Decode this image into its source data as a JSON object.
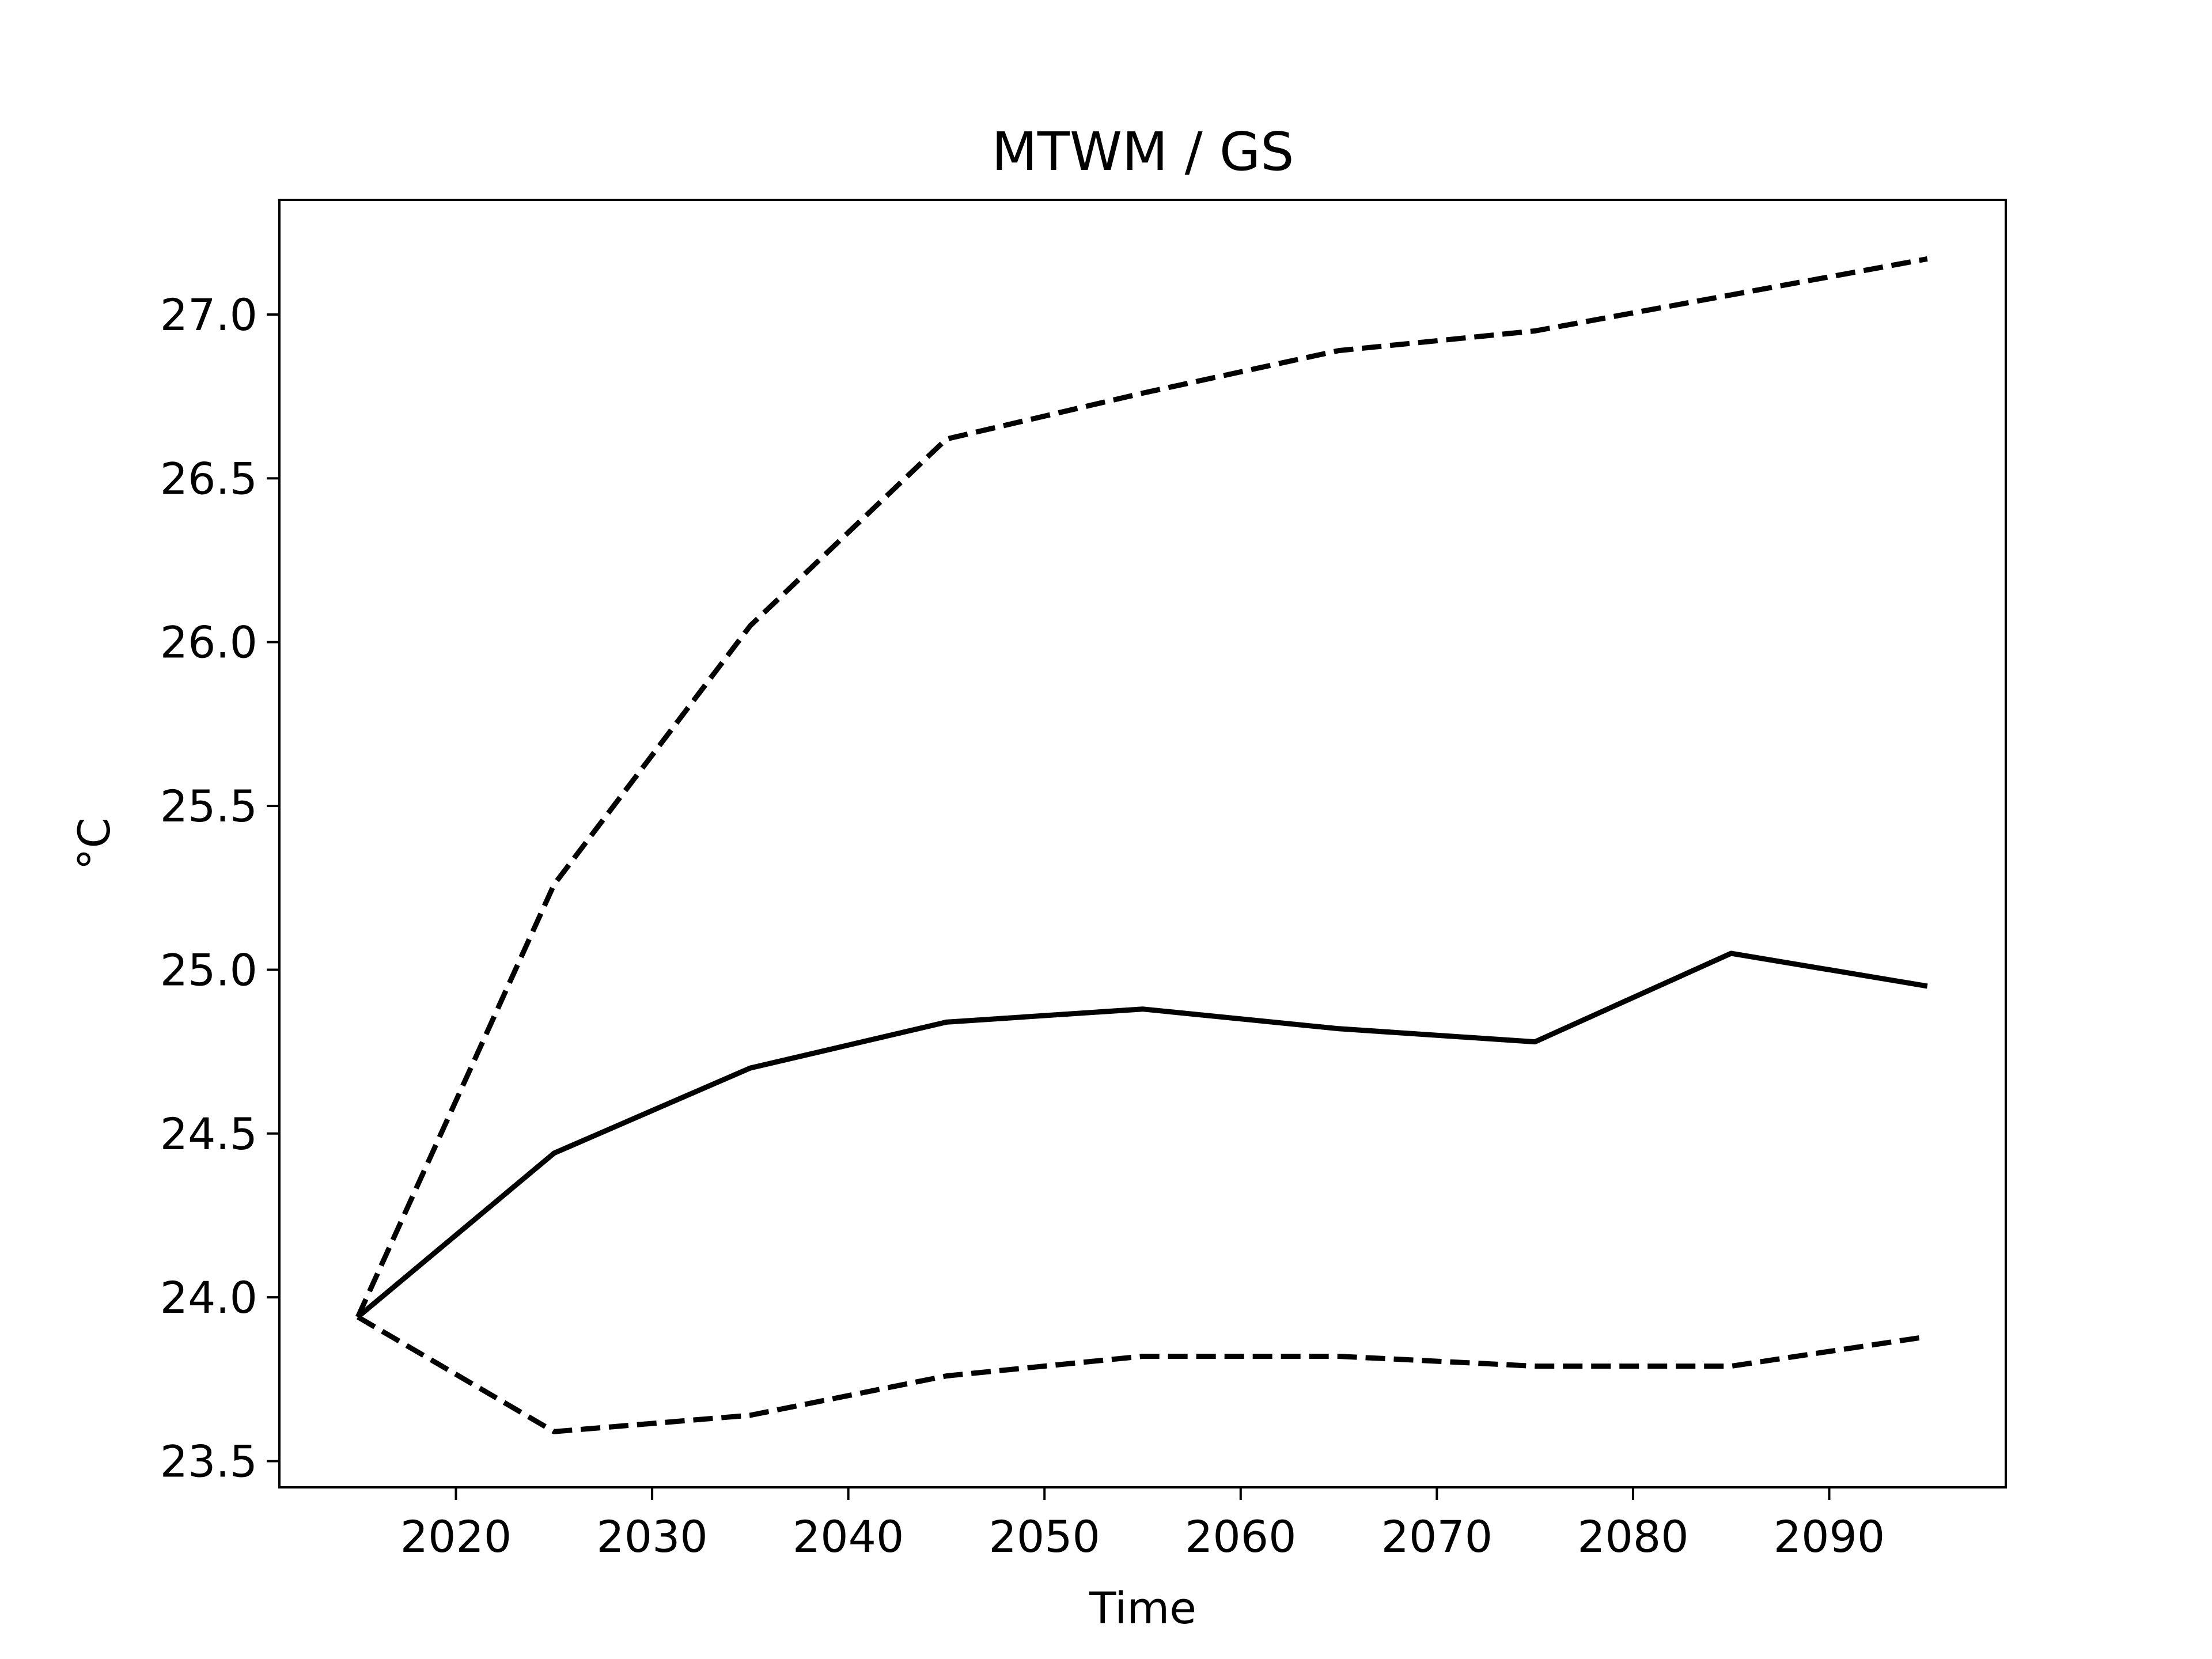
{
  "chart_data": {
    "type": "line",
    "title": "MTWM / GS",
    "xlabel": "Time",
    "ylabel": "°C",
    "x": [
      2015,
      2025,
      2035,
      2045,
      2055,
      2065,
      2075,
      2085,
      2095
    ],
    "xlim": [
      2011,
      2099
    ],
    "ylim": [
      23.42,
      27.35
    ],
    "xticks": [
      2020,
      2030,
      2040,
      2050,
      2060,
      2070,
      2080,
      2090
    ],
    "xtick_labels": [
      "2020",
      "2030",
      "2040",
      "2050",
      "2060",
      "2070",
      "2080",
      "2090"
    ],
    "yticks": [
      23.5,
      24.0,
      24.5,
      25.0,
      25.5,
      26.0,
      26.5,
      27.0
    ],
    "ytick_labels": [
      "23.5",
      "24.0",
      "24.5",
      "25.0",
      "25.5",
      "26.0",
      "26.5",
      "27.0"
    ],
    "grid": false,
    "series": [
      {
        "style": "dashed",
        "color": "#000000",
        "values": [
          23.94,
          25.26,
          26.05,
          26.62,
          26.76,
          26.89,
          26.95,
          27.06,
          27.17
        ]
      },
      {
        "style": "solid",
        "color": "#000000",
        "values": [
          23.94,
          24.44,
          24.7,
          24.84,
          24.88,
          24.82,
          24.78,
          25.05,
          24.95
        ]
      },
      {
        "style": "dashed",
        "color": "#000000",
        "values": [
          23.94,
          23.59,
          23.64,
          23.76,
          23.82,
          23.82,
          23.79,
          23.79,
          23.88
        ]
      }
    ]
  }
}
